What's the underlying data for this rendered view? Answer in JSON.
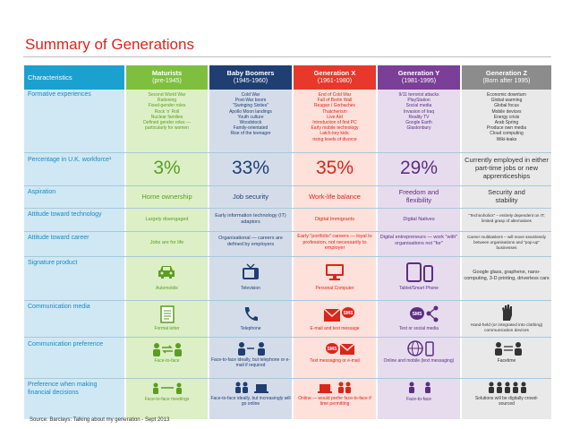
{
  "title": "Summary of Generations",
  "source": "Source: Barclays: Talking about my generation - Sept 2013",
  "header": {
    "characteristics": "Characteristics",
    "columns": [
      {
        "name": "Maturists",
        "years": "(pre-1945)"
      },
      {
        "name": "Baby Boomers",
        "years": "(1945-1960)"
      },
      {
        "name": "Generation X",
        "years": "(1961-1980)"
      },
      {
        "name": "Generation Y",
        "years": "(1981-1995)"
      },
      {
        "name": "Generation Z",
        "years": "(Born after 1995)"
      }
    ]
  },
  "row_labels": {
    "formative": "Formative experiences",
    "percentage": "Percentage in U.K. workforce¹",
    "aspiration": "Aspiration",
    "technology": "Attitude toward technology",
    "career": "Attitude toward career",
    "product": "Signature product",
    "media": "Communication media",
    "preference": "Communication preference",
    "financial": "Preference when making financial decisions"
  },
  "formative": [
    [
      "Second World War",
      "Rationing",
      "Fixed-gender roles",
      "Rock 'n' Roll",
      "Nuclear families",
      "Defined gender roles —",
      "particularly for women"
    ],
    [
      "Cold War",
      "Post-War boom",
      "\"Swinging Sixties\"",
      "Apollo Moon landings",
      "Youth culture",
      "Woodstock",
      "Family-orientated",
      "Rise of the teenager"
    ],
    [
      "End of Cold War",
      "Fall of Berlin Wall",
      "Reagan / Gorbachev",
      "Thatcherism",
      "Live Aid",
      "Introduction of first PC",
      "Early mobile technology",
      "Latch-key kids;",
      "rising levels of divorce"
    ],
    [
      "9/11 terrorist attacks",
      "PlayStation",
      "Social media",
      "Invasion of Iraq",
      "Reality TV",
      "Google Earth",
      "Glastonbury"
    ],
    [
      "Economic downturn",
      "Global warming",
      "Global focus",
      "Mobile devices",
      "Energy crisis",
      "Arab Spring",
      "Produce own media",
      "Cloud computing",
      "Wiki-leaks"
    ]
  ],
  "percentage": [
    "3%",
    "33%",
    "35%",
    "29%",
    "Currently employed in either part-time jobs or new apprenticeships"
  ],
  "aspiration": [
    "Home ownership",
    "Job security",
    "Work-life balance",
    "Freedom and flexibility",
    "Security and stability"
  ],
  "technology": [
    "Largely disengaged",
    "Early information technology (IT) adaptors",
    "Digital Immigrants",
    "Digital Natives",
    "\"Technoholics\" – entirely dependent on IT; limited grasp of alternatives"
  ],
  "career": [
    "Jobs are for life",
    "Organisational — careers are defined by employers",
    "Early \"portfolio\" careers — loyal to profession, not necessarily to employer",
    "Digital entrepreneurs — work \"with\" organisations not \"for\"",
    "Career multitaskers – will move seamlessly between organisations and \"pop-up\" businesses"
  ],
  "product": [
    "Automobile",
    "Television",
    "Personal Computer",
    "Tablet/Smart Phone",
    "Google glass, graphene, nano-computing, 3-D printing, driverless cars"
  ],
  "media": [
    "Formal letter",
    "Telephone",
    "E-mail and text message",
    "Text or social media",
    "Hand-held (or integrated into clothing) communication devices"
  ],
  "preference": [
    "Face-to-face",
    "Face-to-face ideally, but telephone or e-mail if required",
    "Text messaging or e-mail",
    "Online and mobile (text messaging)",
    "Facetime"
  ],
  "financial": [
    "Face-to-face meetings",
    "Face-to-face ideally, but increasingly will go online",
    "Online — would prefer face-to-face if time permitting",
    "Face-to-face",
    "Solutions will be digitally crowd-sourced"
  ],
  "icons": {
    "product": [
      "car-icon",
      "television-icon",
      "computer-icon",
      "tablet-phone-icon"
    ],
    "media": [
      "letter-icon",
      "telephone-icon",
      "email-sms-icon",
      "sms-share-icon",
      "hand-device-icon"
    ],
    "preference": [
      "face-to-face-icon",
      "phone-email-icon",
      "sms-email-icon",
      "online-mobile-icon",
      "facetime-icon"
    ],
    "financial": [
      "meeting-people-icon",
      "people-laptop-icon",
      "laptop-people-icon",
      "two-people-icon",
      "crowd-icon"
    ]
  },
  "colors": {
    "title": "#d9261c",
    "characteristics": "#1aa1cf",
    "maturists": "#7fbf3f",
    "baby_boomers": "#1f3f73",
    "generation_x": "#e8372b",
    "generation_y": "#7b3f98",
    "generation_z": "#8c8c8c"
  }
}
